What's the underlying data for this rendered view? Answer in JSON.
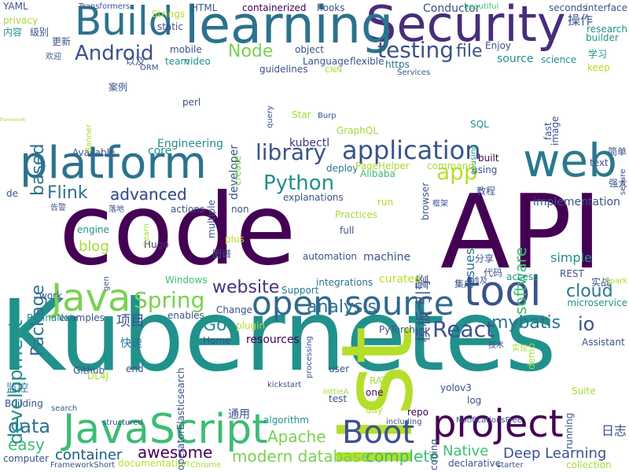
{
  "words": [
    {
      "text": "framework",
      "color": "#a6db35",
      "vertical": false
    },
    {
      "text": "Kubernetes",
      "color": "#21918c",
      "vertical": false
    },
    {
      "text": "code",
      "color": "#440154",
      "vertical": false
    },
    {
      "text": "API",
      "color": "#440154",
      "vertical": false
    },
    {
      "text": "list",
      "color": "#b5de2b",
      "vertical": true
    },
    {
      "text": "Security",
      "color": "#472d7b",
      "vertical": false
    },
    {
      "text": "learning",
      "color": "#2c728e",
      "vertical": false
    },
    {
      "text": "platform",
      "color": "#2c728e",
      "vertical": false
    },
    {
      "text": "web",
      "color": "#2a788e",
      "vertical": false
    },
    {
      "text": "JavaScript",
      "color": "#3dbc74",
      "vertical": false
    },
    {
      "text": "project",
      "color": "#440154",
      "vertical": false
    },
    {
      "text": "tool",
      "color": "#3b528b",
      "vertical": false
    },
    {
      "text": "open source",
      "color": "#31688e",
      "vertical": false
    },
    {
      "text": "Build",
      "color": "#2c728e",
      "vertical": false
    },
    {
      "text": "Java",
      "color": "#7ad151",
      "vertical": false
    },
    {
      "text": "Boot",
      "color": "#3b528b",
      "vertical": false
    },
    {
      "text": "application",
      "color": "#3b528b",
      "vertical": false
    },
    {
      "text": "React",
      "color": "#3b528b",
      "vertical": false
    },
    {
      "text": "Spring",
      "color": "#7ad151",
      "vertical": false
    },
    {
      "text": "testing",
      "color": "#3b528b",
      "vertical": false
    },
    {
      "text": "Android",
      "color": "#3b528b",
      "vertical": false
    },
    {
      "text": "Node",
      "color": "#7ad151",
      "vertical": false
    },
    {
      "text": "library",
      "color": "#3b528b",
      "vertical": false
    },
    {
      "text": "Python",
      "color": "#21918c",
      "vertical": false
    },
    {
      "text": "app",
      "color": "#b5de2b",
      "vertical": false
    },
    {
      "text": "website",
      "color": "#46327e",
      "vertical": false
    },
    {
      "text": "analysis",
      "color": "#2c728e",
      "vertical": false
    },
    {
      "text": "mybatis",
      "color": "#2c728e",
      "vertical": false
    },
    {
      "text": "cloud",
      "color": "#2a788e",
      "vertical": false
    },
    {
      "text": "data",
      "color": "#2c728e",
      "vertical": false
    },
    {
      "text": "Deep Learning",
      "color": "#3b528b",
      "vertical": false
    },
    {
      "text": "awesome",
      "color": "#440154",
      "vertical": false
    },
    {
      "text": "Apache",
      "color": "#7ad151",
      "vertical": false
    },
    {
      "text": "modern database",
      "color": "#7ad151",
      "vertical": false
    },
    {
      "text": "complete",
      "color": "#3dbc74",
      "vertical": false
    },
    {
      "text": "container",
      "color": "#31688e",
      "vertical": false
    },
    {
      "text": "advanced",
      "color": "#3b528b",
      "vertical": false
    },
    {
      "text": "Flink",
      "color": "#2c728e",
      "vertical": false
    },
    {
      "text": "Go",
      "color": "#21918c",
      "vertical": false
    },
    {
      "text": "io",
      "color": "#3b528b",
      "vertical": false
    },
    {
      "text": "file",
      "color": "#3b528b",
      "vertical": false
    },
    {
      "text": "easy",
      "color": "#3dbc74",
      "vertical": false
    },
    {
      "text": "项目",
      "color": "#3b528b",
      "vertical": false
    },
    {
      "text": "模板 引擎",
      "color": "#3b528b",
      "vertical": true
    },
    {
      "text": "development",
      "color": "#21918c",
      "vertical": true
    },
    {
      "text": "Package",
      "color": "#2c728e",
      "vertical": true
    },
    {
      "text": "based",
      "color": "#2c728e",
      "vertical": true
    },
    {
      "text": "software",
      "color": "#3dbc74",
      "vertical": true
    },
    {
      "text": "simple",
      "color": "#21918c",
      "vertical": false
    },
    {
      "text": "blog",
      "color": "#a6db35",
      "vertical": false
    },
    {
      "text": "Native",
      "color": "#3dbc74",
      "vertical": false
    },
    {
      "text": "日志",
      "color": "#3b528b",
      "vertical": false
    },
    {
      "text": "操作",
      "color": "#3b528b",
      "vertical": false
    },
    {
      "text": "source",
      "color": "#21918c",
      "vertical": false
    },
    {
      "text": "machine",
      "color": "#3b528b",
      "vertical": false
    },
    {
      "text": "resources",
      "color": "#440154",
      "vertical": false
    },
    {
      "text": "curated",
      "color": "#b5de2b",
      "vertical": false
    },
    {
      "text": "Engineering",
      "color": "#21918c",
      "vertical": false
    },
    {
      "text": "implementation",
      "color": "#3b528b",
      "vertical": false
    },
    {
      "text": "advanced",
      "color": "#3b528b",
      "vertical": false
    },
    {
      "text": "kubectl",
      "color": "#46327e",
      "vertical": false
    },
    {
      "text": "deploy",
      "color": "#2c728e",
      "vertical": false
    },
    {
      "text": "using",
      "color": "#3b528b",
      "vertical": false
    },
    {
      "text": "built",
      "color": "#440154",
      "vertical": false
    },
    {
      "text": "Alibaba",
      "color": "#3dbc74",
      "vertical": false
    },
    {
      "text": "explanations",
      "color": "#3b528b",
      "vertical": false
    },
    {
      "text": "run",
      "color": "#a6db35",
      "vertical": false
    },
    {
      "text": "issues",
      "color": "#2c728e",
      "vertical": true
    },
    {
      "text": "full",
      "color": "#3b528b",
      "vertical": false
    },
    {
      "text": "engine",
      "color": "#21918c",
      "vertical": false
    },
    {
      "text": "Hugo",
      "color": "#46327e",
      "vertical": false
    },
    {
      "text": "Windows",
      "color": "#3dbc74",
      "vertical": false
    },
    {
      "text": "automation",
      "color": "#3b528b",
      "vertical": false
    },
    {
      "text": "Support",
      "color": "#2a788e",
      "vertical": false
    },
    {
      "text": "integrations",
      "color": "#2c728e",
      "vertical": false
    },
    {
      "text": "work",
      "color": "#3b528b",
      "vertical": false
    },
    {
      "text": "examples",
      "color": "#3b528b",
      "vertical": false
    },
    {
      "text": "enables",
      "color": "#3b528b",
      "vertical": false
    },
    {
      "text": "plugin",
      "color": "#b5de2b",
      "vertical": false
    },
    {
      "text": "Change",
      "color": "#3b528b",
      "vertical": false
    },
    {
      "text": "Home",
      "color": "#3b528b",
      "vertical": false
    },
    {
      "text": "快速",
      "color": "#2c728e",
      "vertical": false
    },
    {
      "text": "监控",
      "color": "#2c728e",
      "vertical": false
    },
    {
      "text": "Github",
      "color": "#3b528b",
      "vertical": false
    },
    {
      "text": "Building",
      "color": "#3b528b",
      "vertical": false
    },
    {
      "text": "end",
      "color": "#3b528b",
      "vertical": false
    },
    {
      "text": "user",
      "color": "#3b528b",
      "vertical": false
    },
    {
      "text": "one",
      "color": "#440154",
      "vertical": false
    },
    {
      "text": "test",
      "color": "#3b528b",
      "vertical": false
    },
    {
      "text": "day",
      "color": "#b5de2b",
      "vertical": false
    },
    {
      "text": "repo",
      "color": "#440154",
      "vertical": false
    },
    {
      "text": "algorithm",
      "color": "#21918c",
      "vertical": false
    },
    {
      "text": "通用",
      "color": "#3b528b",
      "vertical": false
    },
    {
      "text": "container",
      "color": "#31688e",
      "vertical": false
    },
    {
      "text": "Assistant",
      "color": "#3b528b",
      "vertical": false
    },
    {
      "text": "microservice",
      "color": "#21918c",
      "vertical": false
    },
    {
      "text": "access",
      "color": "#21918c",
      "vertical": false
    },
    {
      "text": "Suite",
      "color": "#a6db35",
      "vertical": false
    },
    {
      "text": "running",
      "color": "#3b528b",
      "vertical": true
    },
    {
      "text": "declarative",
      "color": "#3b528b",
      "vertical": false
    },
    {
      "text": "documentation",
      "color": "#b5de2b",
      "vertical": false
    },
    {
      "text": "collection",
      "color": "#a6db35",
      "vertical": false
    },
    {
      "text": "computer",
      "color": "#3b528b",
      "vertical": false
    },
    {
      "text": "YAML",
      "color": "#3b528b",
      "vertical": false
    },
    {
      "text": "privacy",
      "color": "#a6db35",
      "vertical": false
    },
    {
      "text": "内容",
      "color": "#21918c",
      "vertical": false
    },
    {
      "text": "级别",
      "color": "#3b528b",
      "vertical": false
    },
    {
      "text": "更新",
      "color": "#3b528b",
      "vertical": false
    },
    {
      "text": "欢迎",
      "color": "#3b528b",
      "vertical": false
    },
    {
      "text": "Transformers",
      "color": "#3b528b",
      "vertical": false
    },
    {
      "text": "static",
      "color": "#3b528b",
      "vertical": false
    },
    {
      "text": "Strings",
      "color": "#b5de2b",
      "vertical": false
    },
    {
      "text": "HTML",
      "color": "#3b528b",
      "vertical": false
    },
    {
      "text": "containerized",
      "color": "#440154",
      "vertical": false
    },
    {
      "text": "hooks",
      "color": "#3b528b",
      "vertical": false
    },
    {
      "text": "Conductor",
      "color": "#3b528b",
      "vertical": false
    },
    {
      "text": "beautiful",
      "color": "#3dbc74",
      "vertical": false
    },
    {
      "text": "seconds",
      "color": "#3b528b",
      "vertical": false
    },
    {
      "text": "interface",
      "color": "#3b528b",
      "vertical": false
    },
    {
      "text": "builder",
      "color": "#21918c",
      "vertical": false
    },
    {
      "text": "research",
      "color": "#21918c",
      "vertical": false
    },
    {
      "text": "学习",
      "color": "#21918c",
      "vertical": false
    },
    {
      "text": "science",
      "color": "#21918c",
      "vertical": false
    },
    {
      "text": "keep",
      "color": "#b5de2b",
      "vertical": false
    },
    {
      "text": "以及",
      "color": "#3b528b",
      "vertical": false
    },
    {
      "text": "team",
      "color": "#21918c",
      "vertical": false
    },
    {
      "text": "video",
      "color": "#21918c",
      "vertical": false
    },
    {
      "text": "mobile",
      "color": "#3b528b",
      "vertical": false
    },
    {
      "text": "object",
      "color": "#3b528b",
      "vertical": false
    },
    {
      "text": "Language",
      "color": "#3b528b",
      "vertical": false
    },
    {
      "text": "flexible",
      "color": "#3b528b",
      "vertical": false
    },
    {
      "text": "https",
      "color": "#2c728e",
      "vertical": false
    },
    {
      "text": "Services",
      "color": "#3b528b",
      "vertical": false
    },
    {
      "text": "Enjoy",
      "color": "#3b528b",
      "vertical": false
    },
    {
      "text": "guidelines",
      "color": "#3b528b",
      "vertical": false
    },
    {
      "text": "案例",
      "color": "#3b528b",
      "vertical": false
    },
    {
      "text": "ORM",
      "color": "#3b528b",
      "vertical": false
    },
    {
      "text": "CNN",
      "color": "#a6db35",
      "vertical": false
    },
    {
      "text": "perl",
      "color": "#3b528b",
      "vertical": false
    },
    {
      "text": "core",
      "color": "#21918c",
      "vertical": false
    },
    {
      "text": "developer",
      "color": "#3b528b",
      "vertical": true
    },
    {
      "text": "create",
      "color": "#7ad151",
      "vertical": true
    },
    {
      "text": "Star",
      "color": "#a6db35",
      "vertical": false
    },
    {
      "text": "Burp",
      "color": "#3b528b",
      "vertical": false
    },
    {
      "text": "GraphQL",
      "color": "#a6db35",
      "vertical": false
    },
    {
      "text": "SQL",
      "color": "#21918c",
      "vertical": false
    },
    {
      "text": "fast",
      "color": "#3b528b",
      "vertical": true
    },
    {
      "text": "image",
      "color": "#3b528b",
      "vertical": true
    },
    {
      "text": "简单",
      "color": "#3b528b",
      "vertical": false
    },
    {
      "text": "text",
      "color": "#3b528b",
      "vertical": false
    },
    {
      "text": "教程",
      "color": "#3b528b",
      "vertical": false
    },
    {
      "text": "强大",
      "color": "#3b528b",
      "vertical": false
    },
    {
      "text": "causing",
      "color": "#21918c",
      "vertical": true
    },
    {
      "text": "PageHelper",
      "color": "#a6db35",
      "vertical": false
    },
    {
      "text": "command",
      "color": "#a6db35",
      "vertical": false
    },
    {
      "text": "Available",
      "color": "#3b528b",
      "vertical": false
    },
    {
      "text": "de",
      "color": "#3b528b",
      "vertical": false
    },
    {
      "text": "multiple",
      "color": "#3b528b",
      "vertical": true
    },
    {
      "text": "non",
      "color": "#3b528b",
      "vertical": false
    },
    {
      "text": "browser",
      "color": "#3b528b",
      "vertical": true
    },
    {
      "text": "框架",
      "color": "#3b528b",
      "vertical": false
    },
    {
      "text": "告警",
      "color": "#3b528b",
      "vertical": false
    },
    {
      "text": "落地",
      "color": "#3b528b",
      "vertical": false
    },
    {
      "text": "actions",
      "color": "#3b528b",
      "vertical": false
    },
    {
      "text": "Practices",
      "color": "#a6db35",
      "vertical": false
    },
    {
      "text": "plus",
      "color": "#b5de2b",
      "vertical": false
    },
    {
      "text": "图谱",
      "color": "#3b528b",
      "vertical": false
    },
    {
      "text": "分享",
      "color": "#3b528b",
      "vertical": false
    },
    {
      "text": "代码",
      "color": "#3b528b",
      "vertical": false
    },
    {
      "text": "集成",
      "color": "#3b528b",
      "vertical": false
    },
    {
      "text": "涉及",
      "color": "#3b528b",
      "vertical": false
    },
    {
      "text": "实战",
      "color": "#3b528b",
      "vertical": false
    },
    {
      "text": "REST",
      "color": "#3b528b",
      "vertical": false
    },
    {
      "text": "Spark",
      "color": "#b5de2b",
      "vertical": false
    },
    {
      "text": "gen",
      "color": "#3b528b",
      "vertical": true
    },
    {
      "text": "RetinaNet",
      "color": "#21918c",
      "vertical": false
    },
    {
      "text": "search",
      "color": "#3b528b",
      "vertical": false
    },
    {
      "text": "operatorElasticsearch",
      "color": "#3b528b",
      "vertical": true
    },
    {
      "text": "processing",
      "color": "#3b528b",
      "vertical": true
    },
    {
      "text": "PyTorch",
      "color": "#3b528b",
      "vertical": false
    },
    {
      "text": "技术",
      "color": "#3b528b",
      "vertical": false
    },
    {
      "text": "实现",
      "color": "#a6db35",
      "vertical": false
    },
    {
      "text": "demo",
      "color": "#a6db35",
      "vertical": true
    },
    {
      "text": "DL4J",
      "color": "#a6db35",
      "vertical": false
    },
    {
      "text": "kickstart",
      "color": "#3b528b",
      "vertical": false
    },
    {
      "text": "lottieA",
      "color": "#a6db35",
      "vertical": false
    },
    {
      "text": "RAT",
      "color": "#a6db35",
      "vertical": false
    },
    {
      "text": "yolov3",
      "color": "#3b528b",
      "vertical": false
    },
    {
      "text": "log",
      "color": "#3b528b",
      "vertical": false
    },
    {
      "text": "structured",
      "color": "#3b528b",
      "vertical": false
    },
    {
      "text": "including",
      "color": "#3b528b",
      "vertical": false
    },
    {
      "text": "NotificationsFree",
      "color": "#3b528b",
      "vertical": false
    },
    {
      "text": "coding",
      "color": "#3b528b",
      "vertical": true
    },
    {
      "text": "starter",
      "color": "#3b528b",
      "vertical": false
    },
    {
      "text": "FrameworkShort",
      "color": "#3b528b",
      "vertical": false
    },
    {
      "text": "Chrome",
      "color": "#a6db35",
      "vertical": false
    },
    {
      "text": "Banner",
      "color": "#a6db35",
      "vertical": true
    },
    {
      "text": "query",
      "color": "#3b528b",
      "vertical": true
    },
    {
      "text": "Learn",
      "color": "#a6db35",
      "vertical": true
    },
    {
      "text": "secure",
      "color": "#3b528b",
      "vertical": true
    }
  ]
}
